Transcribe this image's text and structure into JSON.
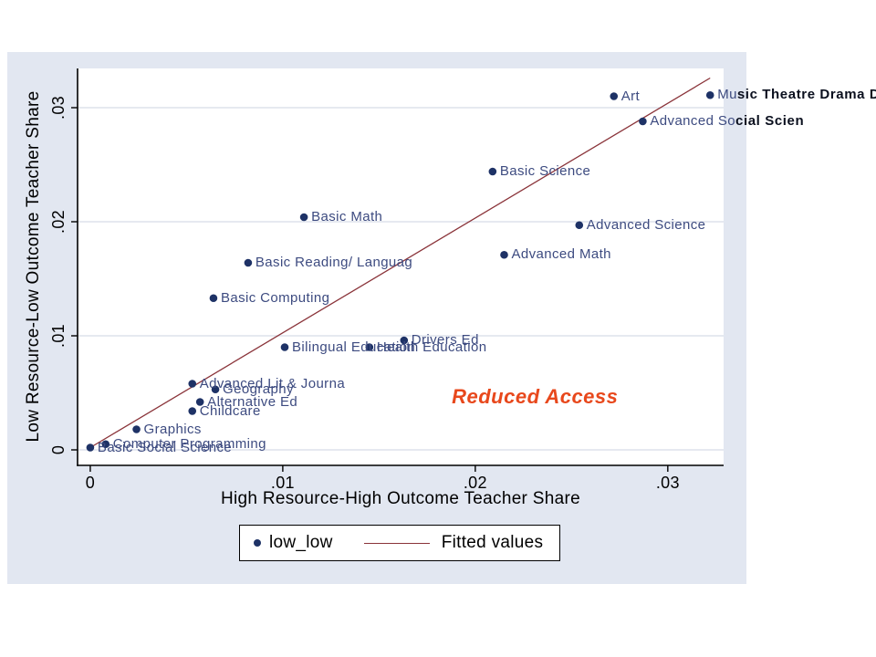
{
  "figure": {
    "background_color": "#e2e7f1",
    "plot_background_color": "#ffffff"
  },
  "chart_data": {
    "type": "scatter",
    "xlabel": "High Resource-High Outcome Teacher Share",
    "ylabel": "Low Resource-Low Outcome Teacher Share",
    "xlim": [
      -0.00066,
      0.0329
    ],
    "ylim": [
      -0.00136,
      0.03344
    ],
    "grid": "horizontal",
    "x_ticks": [
      {
        "value": 0,
        "label": "0"
      },
      {
        "value": 0.01,
        "label": ".01"
      },
      {
        "value": 0.02,
        "label": ".02"
      },
      {
        "value": 0.03,
        "label": ".03"
      }
    ],
    "y_ticks": [
      {
        "value": 0,
        "label": "0"
      },
      {
        "value": 0.01,
        "label": ".01"
      },
      {
        "value": 0.02,
        "label": ".02"
      },
      {
        "value": 0.03,
        "label": ".03"
      }
    ],
    "points": [
      {
        "x": 0.0,
        "y": 0.0002,
        "label": "Basic Social Science"
      },
      {
        "x": 0.0008,
        "y": 0.0005,
        "label": "Computer Programming"
      },
      {
        "x": 0.0024,
        "y": 0.0018,
        "label": "Graphics"
      },
      {
        "x": 0.0053,
        "y": 0.0034,
        "label": "Childcare"
      },
      {
        "x": 0.0057,
        "y": 0.0042,
        "label": "Alternative Ed"
      },
      {
        "x": 0.0065,
        "y": 0.0053,
        "label": "Geography"
      },
      {
        "x": 0.0053,
        "y": 0.0058,
        "label": "Advanced Lit & Journa"
      },
      {
        "x": 0.0101,
        "y": 0.009,
        "label": "Bilingual Education"
      },
      {
        "x": 0.0145,
        "y": 0.009,
        "label": "Health Education"
      },
      {
        "x": 0.0163,
        "y": 0.0096,
        "label": "Drivers Ed"
      },
      {
        "x": 0.0064,
        "y": 0.0133,
        "label": "Basic Computing"
      },
      {
        "x": 0.0082,
        "y": 0.0164,
        "label": "Basic Reading/ Languag"
      },
      {
        "x": 0.0111,
        "y": 0.0204,
        "label": "Basic Math"
      },
      {
        "x": 0.0215,
        "y": 0.0171,
        "label": "Advanced Math"
      },
      {
        "x": 0.0254,
        "y": 0.0197,
        "label": "Advanced Science"
      },
      {
        "x": 0.0209,
        "y": 0.0244,
        "label": "Basic Science"
      },
      {
        "x": 0.0287,
        "y": 0.0288,
        "label": "Advanced Social Scien",
        "bold_from": 11
      },
      {
        "x": 0.0272,
        "y": 0.031,
        "label": "Art"
      },
      {
        "x": 0.0322,
        "y": 0.0311,
        "label": "Music Theatre Drama D",
        "bold_from": 2
      }
    ],
    "fit_line": {
      "x1": 0.0,
      "y1": 0.0002,
      "x2": 0.0322,
      "y2": 0.0326
    },
    "annotation": {
      "text": "Reduced Access",
      "x": 0.0231,
      "y": 0.0046,
      "color": "#e8481c"
    },
    "colors": {
      "marker": "#1e3266",
      "marker_label": "#3d4b80",
      "fit_line": "#8a3339",
      "grid_line": "#dde2ec",
      "axis_line": "#000000"
    }
  },
  "legend": {
    "series_label": "low_low",
    "fit_label": "Fitted values"
  }
}
